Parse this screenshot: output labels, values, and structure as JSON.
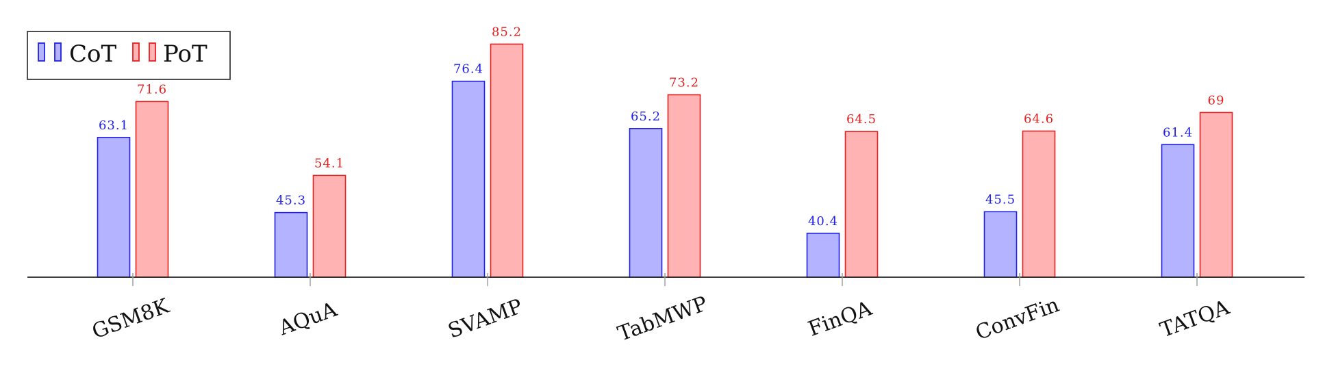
{
  "chart_data": {
    "type": "bar",
    "categories": [
      "GSM8K",
      "AQuA",
      "SVAMP",
      "TabMWP",
      "FinQA",
      "ConvFin",
      "TATQA"
    ],
    "series": [
      {
        "name": "CoT",
        "values": [
          63.1,
          45.3,
          76.4,
          65.2,
          40.4,
          45.5,
          61.4
        ],
        "labels": [
          "63.1",
          "45.3",
          "76.4",
          "65.2",
          "40.4",
          "45.5",
          "61.4"
        ],
        "fill": "#b3b3ff",
        "stroke": "#1f1fe6",
        "label_color": "#1f1fe6"
      },
      {
        "name": "PoT",
        "values": [
          71.6,
          54.1,
          85.2,
          73.2,
          64.5,
          64.6,
          69
        ],
        "labels": [
          "71.6",
          "54.1",
          "85.2",
          "73.2",
          "64.5",
          "64.6",
          "69"
        ],
        "fill": "#ffb3b3",
        "stroke": "#e61f1f",
        "label_color": "#e61f1f"
      }
    ],
    "ylim": [
      30,
      90
    ],
    "grid": false,
    "legend_position": "top-left",
    "axis_color": "#222222"
  }
}
